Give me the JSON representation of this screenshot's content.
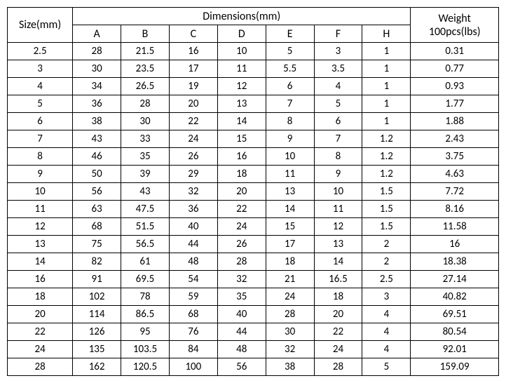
{
  "table": {
    "type": "table",
    "background_color": "#ffffff",
    "border_color": "#000000",
    "text_color": "#000000",
    "header": {
      "size_label": "Size(mm)",
      "dimensions_label": "Dimensions(mm)",
      "weight_label": "Weight 100pcs(lbs)",
      "dimension_columns": [
        "A",
        "B",
        "C",
        "D",
        "E",
        "F",
        "H"
      ]
    },
    "rows": [
      {
        "size": "2.5",
        "A": "28",
        "B": "21.5",
        "C": "16",
        "D": "10",
        "E": "5",
        "F": "3",
        "H": "1",
        "weight": "0.31"
      },
      {
        "size": "3",
        "A": "30",
        "B": "23.5",
        "C": "17",
        "D": "11",
        "E": "5.5",
        "F": "3.5",
        "H": "1",
        "weight": "0.77"
      },
      {
        "size": "4",
        "A": "34",
        "B": "26.5",
        "C": "19",
        "D": "12",
        "E": "6",
        "F": "4",
        "H": "1",
        "weight": "0.93"
      },
      {
        "size": "5",
        "A": "36",
        "B": "28",
        "C": "20",
        "D": "13",
        "E": "7",
        "F": "5",
        "H": "1",
        "weight": "1.77"
      },
      {
        "size": "6",
        "A": "38",
        "B": "30",
        "C": "22",
        "D": "14",
        "E": "8",
        "F": "6",
        "H": "1",
        "weight": "1.88"
      },
      {
        "size": "7",
        "A": "43",
        "B": "33",
        "C": "24",
        "D": "15",
        "E": "9",
        "F": "7",
        "H": "1.2",
        "weight": "2.43"
      },
      {
        "size": "8",
        "A": "46",
        "B": "35",
        "C": "26",
        "D": "16",
        "E": "10",
        "F": "8",
        "H": "1.2",
        "weight": "3.75"
      },
      {
        "size": "9",
        "A": "50",
        "B": "39",
        "C": "29",
        "D": "18",
        "E": "11",
        "F": "9",
        "H": "1.2",
        "weight": "4.63"
      },
      {
        "size": "10",
        "A": "56",
        "B": "43",
        "C": "32",
        "D": "20",
        "E": "13",
        "F": "10",
        "H": "1.5",
        "weight": "7.72"
      },
      {
        "size": "11",
        "A": "63",
        "B": "47.5",
        "C": "36",
        "D": "22",
        "E": "14",
        "F": "11",
        "H": "1.5",
        "weight": "8.16"
      },
      {
        "size": "12",
        "A": "68",
        "B": "51.5",
        "C": "40",
        "D": "24",
        "E": "15",
        "F": "12",
        "H": "1.5",
        "weight": "11.58"
      },
      {
        "size": "13",
        "A": "75",
        "B": "56.5",
        "C": "44",
        "D": "26",
        "E": "17",
        "F": "13",
        "H": "2",
        "weight": "16"
      },
      {
        "size": "14",
        "A": "82",
        "B": "61",
        "C": "48",
        "D": "28",
        "E": "18",
        "F": "14",
        "H": "2",
        "weight": "18.38"
      },
      {
        "size": "16",
        "A": "91",
        "B": "69.5",
        "C": "54",
        "D": "32",
        "E": "21",
        "F": "16.5",
        "H": "2.5",
        "weight": "27.14"
      },
      {
        "size": "18",
        "A": "102",
        "B": "78",
        "C": "59",
        "D": "35",
        "E": "24",
        "F": "18",
        "H": "3",
        "weight": "40.82"
      },
      {
        "size": "20",
        "A": "114",
        "B": "86.5",
        "C": "68",
        "D": "40",
        "E": "28",
        "F": "20",
        "H": "4",
        "weight": "69.51"
      },
      {
        "size": "22",
        "A": "126",
        "B": "95",
        "C": "76",
        "D": "44",
        "E": "30",
        "F": "22",
        "H": "4",
        "weight": "80.54"
      },
      {
        "size": "24",
        "A": "135",
        "B": "103.5",
        "C": "84",
        "D": "48",
        "E": "32",
        "F": "24",
        "H": "4",
        "weight": "92.01"
      },
      {
        "size": "28",
        "A": "162",
        "B": "120.5",
        "C": "100",
        "D": "56",
        "E": "38",
        "F": "28",
        "H": "5",
        "weight": "159.09"
      }
    ]
  }
}
